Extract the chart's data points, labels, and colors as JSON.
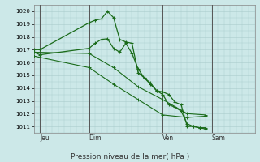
{
  "background_color": "#cce8e8",
  "grid_color": "#aacccc",
  "line_color": "#1a6b1a",
  "xlabel": "Pression niveau de la mer( hPa )",
  "ylim": [
    1010.5,
    1020.5
  ],
  "yticks": [
    1011,
    1012,
    1013,
    1014,
    1015,
    1016,
    1017,
    1018,
    1019,
    1020
  ],
  "xlim": [
    0,
    36
  ],
  "day_labels": [
    "Jeu",
    "Dim",
    "Ven",
    "Sam"
  ],
  "day_positions": [
    1,
    9,
    21,
    29
  ],
  "vline_positions": [
    1,
    9,
    21,
    29
  ],
  "series": [
    {
      "x": [
        0,
        1,
        9,
        10,
        11,
        12,
        13,
        14,
        15,
        16,
        17,
        18,
        19,
        20,
        21,
        22,
        23,
        24,
        25,
        26,
        27,
        28
      ],
      "y": [
        1017.0,
        1017.0,
        1019.1,
        1019.3,
        1019.4,
        1020.0,
        1019.5,
        1017.8,
        1017.6,
        1017.5,
        1015.2,
        1014.8,
        1014.4,
        1013.8,
        1013.7,
        1013.5,
        1012.9,
        1012.7,
        1011.0,
        1011.0,
        1010.9,
        1010.9
      ]
    },
    {
      "x": [
        0,
        1,
        9,
        10,
        11,
        12,
        13,
        14,
        15,
        16,
        17,
        18,
        19,
        20,
        21,
        22,
        23,
        24,
        25,
        26,
        27,
        28
      ],
      "y": [
        1016.8,
        1016.6,
        1017.1,
        1017.5,
        1017.8,
        1017.85,
        1017.1,
        1016.8,
        1017.5,
        1016.7,
        1015.5,
        1014.8,
        1014.3,
        1013.8,
        1013.5,
        1012.7,
        1012.5,
        1012.2,
        1011.2,
        1011.0,
        1010.9,
        1010.8
      ]
    },
    {
      "x": [
        0,
        9,
        13,
        17,
        21,
        25,
        28
      ],
      "y": [
        1016.8,
        1016.7,
        1015.6,
        1014.1,
        1013.1,
        1012.0,
        1011.9
      ]
    },
    {
      "x": [
        0,
        9,
        13,
        17,
        21,
        25,
        28
      ],
      "y": [
        1016.5,
        1015.6,
        1014.3,
        1013.1,
        1011.9,
        1011.7,
        1011.8
      ]
    }
  ]
}
